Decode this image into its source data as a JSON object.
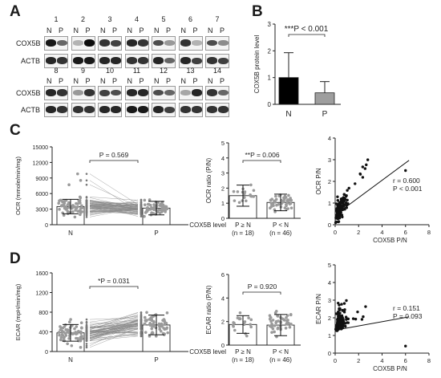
{
  "panel_letters": {
    "A": "A",
    "B": "B",
    "C": "C",
    "D": "D"
  },
  "blot": {
    "lanes_top": [
      "1",
      "2",
      "3",
      "4",
      "5",
      "6",
      "7"
    ],
    "lanes_bottom": [
      "8",
      "9",
      "10",
      "11",
      "12",
      "13",
      "14"
    ],
    "np": [
      "N",
      "P"
    ],
    "row_labels": {
      "cox5b": "COX5B",
      "actb": "ACTB"
    },
    "intensity_top_cox5b": [
      [
        0.9,
        0.6
      ],
      [
        0.3,
        0.95
      ],
      [
        0.8,
        0.75
      ],
      [
        0.85,
        0.8
      ],
      [
        0.7,
        0.4
      ],
      [
        0.8,
        0.3
      ],
      [
        0.7,
        0.45
      ]
    ],
    "intensity_top_actb": [
      [
        0.85,
        0.8
      ],
      [
        0.9,
        0.9
      ],
      [
        0.85,
        0.85
      ],
      [
        0.8,
        0.8
      ],
      [
        0.85,
        0.6
      ],
      [
        0.85,
        0.75
      ],
      [
        0.8,
        0.75
      ]
    ],
    "intensity_bottom_cox5b": [
      [
        0.85,
        0.8
      ],
      [
        0.4,
        0.8
      ],
      [
        0.75,
        0.7
      ],
      [
        0.85,
        0.85
      ],
      [
        0.7,
        0.6
      ],
      [
        0.35,
        0.85
      ],
      [
        0.8,
        0.6
      ]
    ],
    "intensity_bottom_actb": [
      [
        0.85,
        0.8
      ],
      [
        0.8,
        0.8
      ],
      [
        0.85,
        0.85
      ],
      [
        0.9,
        0.9
      ],
      [
        0.85,
        0.75
      ],
      [
        0.8,
        0.8
      ],
      [
        0.8,
        0.8
      ]
    ]
  },
  "chart_data": [
    {
      "panel": "B",
      "type": "bar",
      "categories": [
        "N",
        "P"
      ],
      "values": [
        1.0,
        0.43
      ],
      "error_sd": [
        0.93,
        0.42
      ],
      "colors": [
        "#000000",
        "#9e9e9e"
      ],
      "ylabel": "COX5B protein level",
      "yticks": [
        "0",
        "1",
        "2",
        "3"
      ],
      "ylim": [
        0,
        3
      ],
      "annotation": "***P < 0.001"
    },
    {
      "panel": "C-left",
      "type": "scatter",
      "categories": [
        "N",
        "P"
      ],
      "values": [
        3500,
        3200
      ],
      "error_sd": [
        1400,
        1300
      ],
      "ylabel": "OCR (mmole/min/mg)",
      "yticks": [
        "0",
        "3000",
        "6000",
        "9000",
        "12000",
        "15000"
      ],
      "ylim": [
        0,
        15000
      ],
      "annotation": "P = 0.569",
      "n_points": 64
    },
    {
      "panel": "C-middle",
      "type": "scatter",
      "categories": [
        "P ≥ N\n(n = 18)",
        "P < N\n(n = 46)"
      ],
      "category_lines": [
        [
          "P ≥ N",
          "(n = 18)"
        ],
        [
          "P < N",
          "(n = 46)"
        ]
      ],
      "values": [
        1.5,
        1.05
      ],
      "error_sd": [
        0.7,
        0.55
      ],
      "ylabel": "OCR ratio (P/N)",
      "xlabel": "COX5B level",
      "yticks": [
        "0",
        "1",
        "2",
        "3",
        "4",
        "5"
      ],
      "ylim": [
        0,
        5
      ],
      "annotation": "**P = 0.006"
    },
    {
      "panel": "C-right",
      "type": "scatter",
      "xlabel": "COX5B P/N",
      "ylabel": "OCR P/N",
      "xticks": [
        "0",
        "2",
        "4",
        "6",
        "8"
      ],
      "yticks": [
        "0",
        "1",
        "2",
        "3",
        "4"
      ],
      "xlim": [
        0,
        8
      ],
      "ylim": [
        0,
        4
      ],
      "stats": [
        "r = 0.600",
        "P < 0.001"
      ],
      "fit": {
        "slope": 0.4,
        "intercept": 0.45
      }
    },
    {
      "panel": "D-left",
      "type": "scatter",
      "categories": [
        "N",
        "P"
      ],
      "values": [
        380,
        540
      ],
      "error_sd": [
        170,
        200
      ],
      "ylabel": "ECAR (mpH/min/mg)",
      "yticks": [
        "0",
        "400",
        "800",
        "1200",
        "1600"
      ],
      "ylim": [
        0,
        1600
      ],
      "annotation": "*P = 0.031",
      "n_points": 64
    },
    {
      "panel": "D-middle",
      "type": "scatter",
      "categories": [
        "P ≥ N\n(n = 18)",
        "P < N\n(n = 46)"
      ],
      "category_lines": [
        [
          "P ≥ N",
          "(n = 18)"
        ],
        [
          "P < N",
          "(n = 46)"
        ]
      ],
      "values": [
        1.75,
        1.7
      ],
      "error_sd": [
        0.75,
        0.9
      ],
      "ylabel": "ECAR ratio (P/N)",
      "xlabel": "COX5B level",
      "yticks": [
        "0",
        "2",
        "4",
        "6"
      ],
      "ylim": [
        0,
        6
      ],
      "annotation": "P = 0.920"
    },
    {
      "panel": "D-right",
      "type": "scatter",
      "xlabel": "COX5B P/N",
      "ylabel": "ECAR P/N",
      "xticks": [
        "0",
        "2",
        "4",
        "6",
        "8"
      ],
      "yticks": [
        "0",
        "1",
        "2",
        "3",
        "4",
        "5"
      ],
      "xlim": [
        0,
        8
      ],
      "ylim": [
        0,
        5
      ],
      "stats": [
        "r = 0.151",
        "P = 0.093"
      ],
      "fit": {
        "slope": 0.12,
        "intercept": 1.3
      }
    }
  ]
}
